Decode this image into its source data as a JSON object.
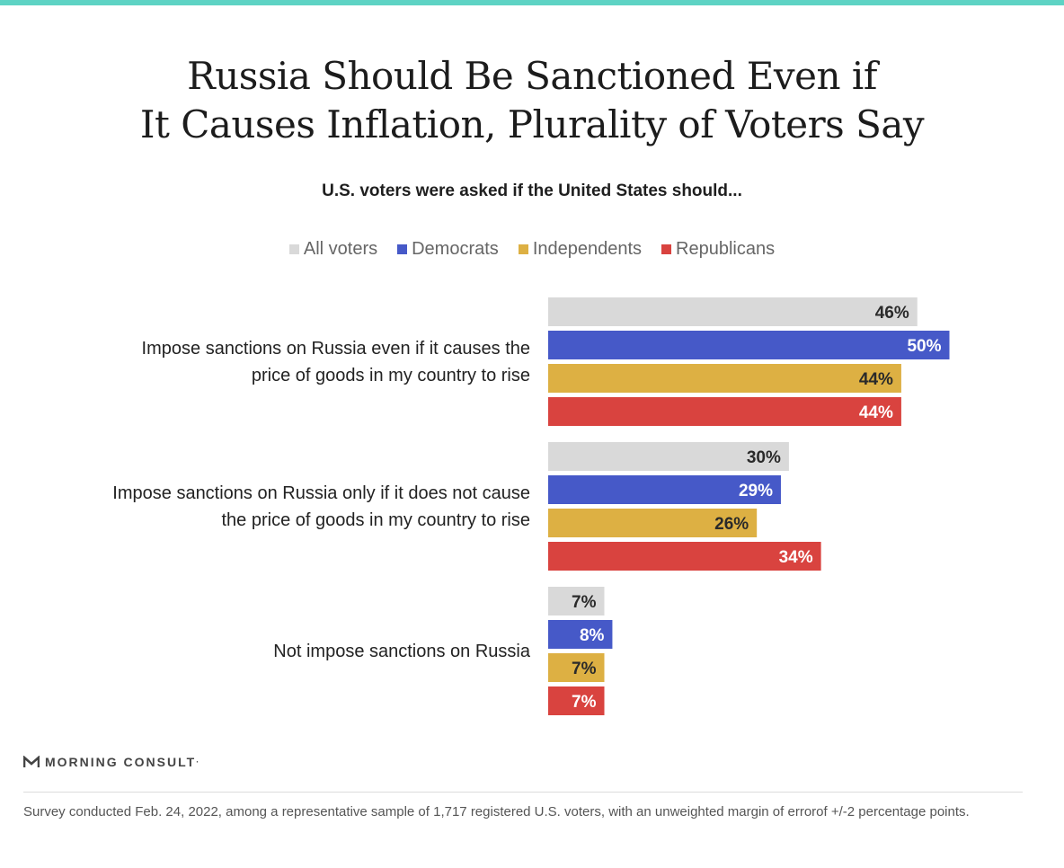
{
  "header": {
    "title_line1": "Russia Should Be Sanctioned Even if",
    "title_line2": "It Causes Inflation, Plurality of Voters Say",
    "subtitle": "U.S. voters were asked if the United States should..."
  },
  "colors": {
    "accent_bar": "#5ed3c4",
    "all_voters": "#d9d9d9",
    "democrats": "#4659c8",
    "independents": "#ddb043",
    "republicans": "#d9433f",
    "label_dark": "#2a2a2a",
    "label_light": "#ffffff"
  },
  "chart_data": {
    "type": "bar",
    "orientation": "horizontal",
    "title": "Russia Should Be Sanctioned Even if It Causes Inflation, Plurality of Voters Say",
    "subtitle": "U.S. voters were asked if the United States should...",
    "categories": [
      [
        "Impose sanctions on Russia even if it causes the",
        "price of goods in my country to rise"
      ],
      [
        "Impose sanctions on Russia only if it does not cause",
        "the price of goods in my country to rise"
      ],
      [
        "Not impose sanctions on Russia"
      ]
    ],
    "series": [
      {
        "name": "All voters",
        "values": [
          46,
          30,
          7
        ]
      },
      {
        "name": "Democrats",
        "values": [
          50,
          29,
          8
        ]
      },
      {
        "name": "Independents",
        "values": [
          44,
          26,
          7
        ]
      },
      {
        "name": "Republicans",
        "values": [
          44,
          34,
          7
        ]
      }
    ],
    "unit": "%",
    "xlim": [
      0,
      100
    ],
    "legend": "top",
    "grid": false
  },
  "brand": {
    "logo_text": "MORNING CONSULT",
    "logo_mark": "·"
  },
  "footnote": "Survey conducted Feb. 24, 2022, among a representative sample of 1,717 registered U.S. voters, with an unweighted margin of errorof +/-2 percentage points."
}
